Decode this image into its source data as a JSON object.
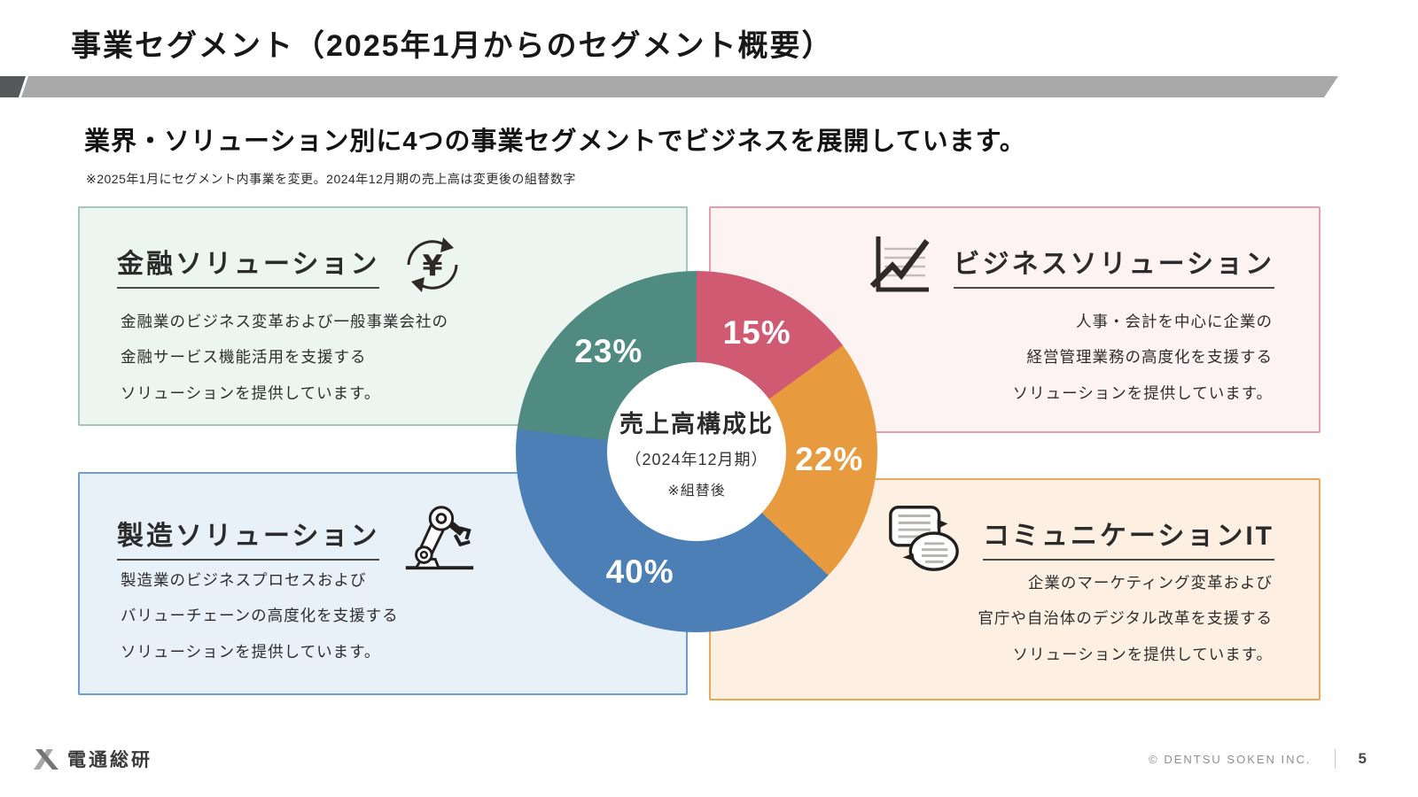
{
  "title": "事業セグメント（2025年1月からのセグメント概要）",
  "subtitle": "業界・ソリューション別に4つの事業セグメントでビジネスを展開しています。",
  "note": "※2025年1月にセグメント内事業を変更。2024年12月期の売上高は変更後の組替数字",
  "segments": [
    {
      "name": "金融ソリューション",
      "icon": "yen-cycle-icon",
      "lines": [
        "金融業のビジネス変革および一般事業会社の",
        "金融サービス機能活用を支援する",
        "ソリューションを提供しています。"
      ],
      "share_label": "23%",
      "colors": {
        "bg": "#edf5f1",
        "border": "#a3c6c0",
        "slice": "#4f8b81"
      }
    },
    {
      "name": "ビジネスソリューション",
      "icon": "line-chart-icon",
      "lines": [
        "人事・会計を中心に企業の",
        "経営管理業務の高度化を支援する",
        "ソリューションを提供しています。"
      ],
      "share_label": "15%",
      "colors": {
        "bg": "#fdf3f3",
        "border": "#e79daa",
        "slice": "#d15a73"
      }
    },
    {
      "name": "製造ソリューション",
      "icon": "robot-arm-icon",
      "lines": [
        "製造業のビジネスプロセスおよび",
        "バリューチェーンの高度化を支援する",
        "ソリューションを提供しています。"
      ],
      "share_label": "40%",
      "colors": {
        "bg": "#e8f0f8",
        "border": "#6f9fd0",
        "slice": "#4c7fb5"
      }
    },
    {
      "name": "コミュニケーションIT",
      "icon": "speech-bubbles-icon",
      "lines": [
        "企業のマーケティング変革および",
        "官庁や自治体のデジタル改革を支援する",
        "ソリューションを提供しています。"
      ],
      "share_label": "22%",
      "colors": {
        "bg": "#fdf0e2",
        "border": "#e9a959",
        "slice": "#e79b3e"
      }
    }
  ],
  "chart_data": {
    "type": "pie",
    "title": "売上高構成比",
    "period": "（2024年12月期）",
    "note": "※組替後",
    "start_angle_deg": 0,
    "direction": "clockwise",
    "slices": [
      {
        "name": "ビジネスソリューション",
        "label": "15%",
        "value": 15,
        "color": "#d15a73"
      },
      {
        "name": "コミュニケーションIT",
        "label": "22%",
        "value": 22,
        "color": "#e79b3e"
      },
      {
        "name": "製造ソリューション",
        "label": "40%",
        "value": 40,
        "color": "#4c7fb5"
      },
      {
        "name": "金融ソリューション",
        "label": "23%",
        "value": 23,
        "color": "#4f8b81"
      }
    ]
  },
  "footer": {
    "logo_text": "電通総研",
    "copyright": "© DENTSU SOKEN INC.",
    "page": "5"
  }
}
